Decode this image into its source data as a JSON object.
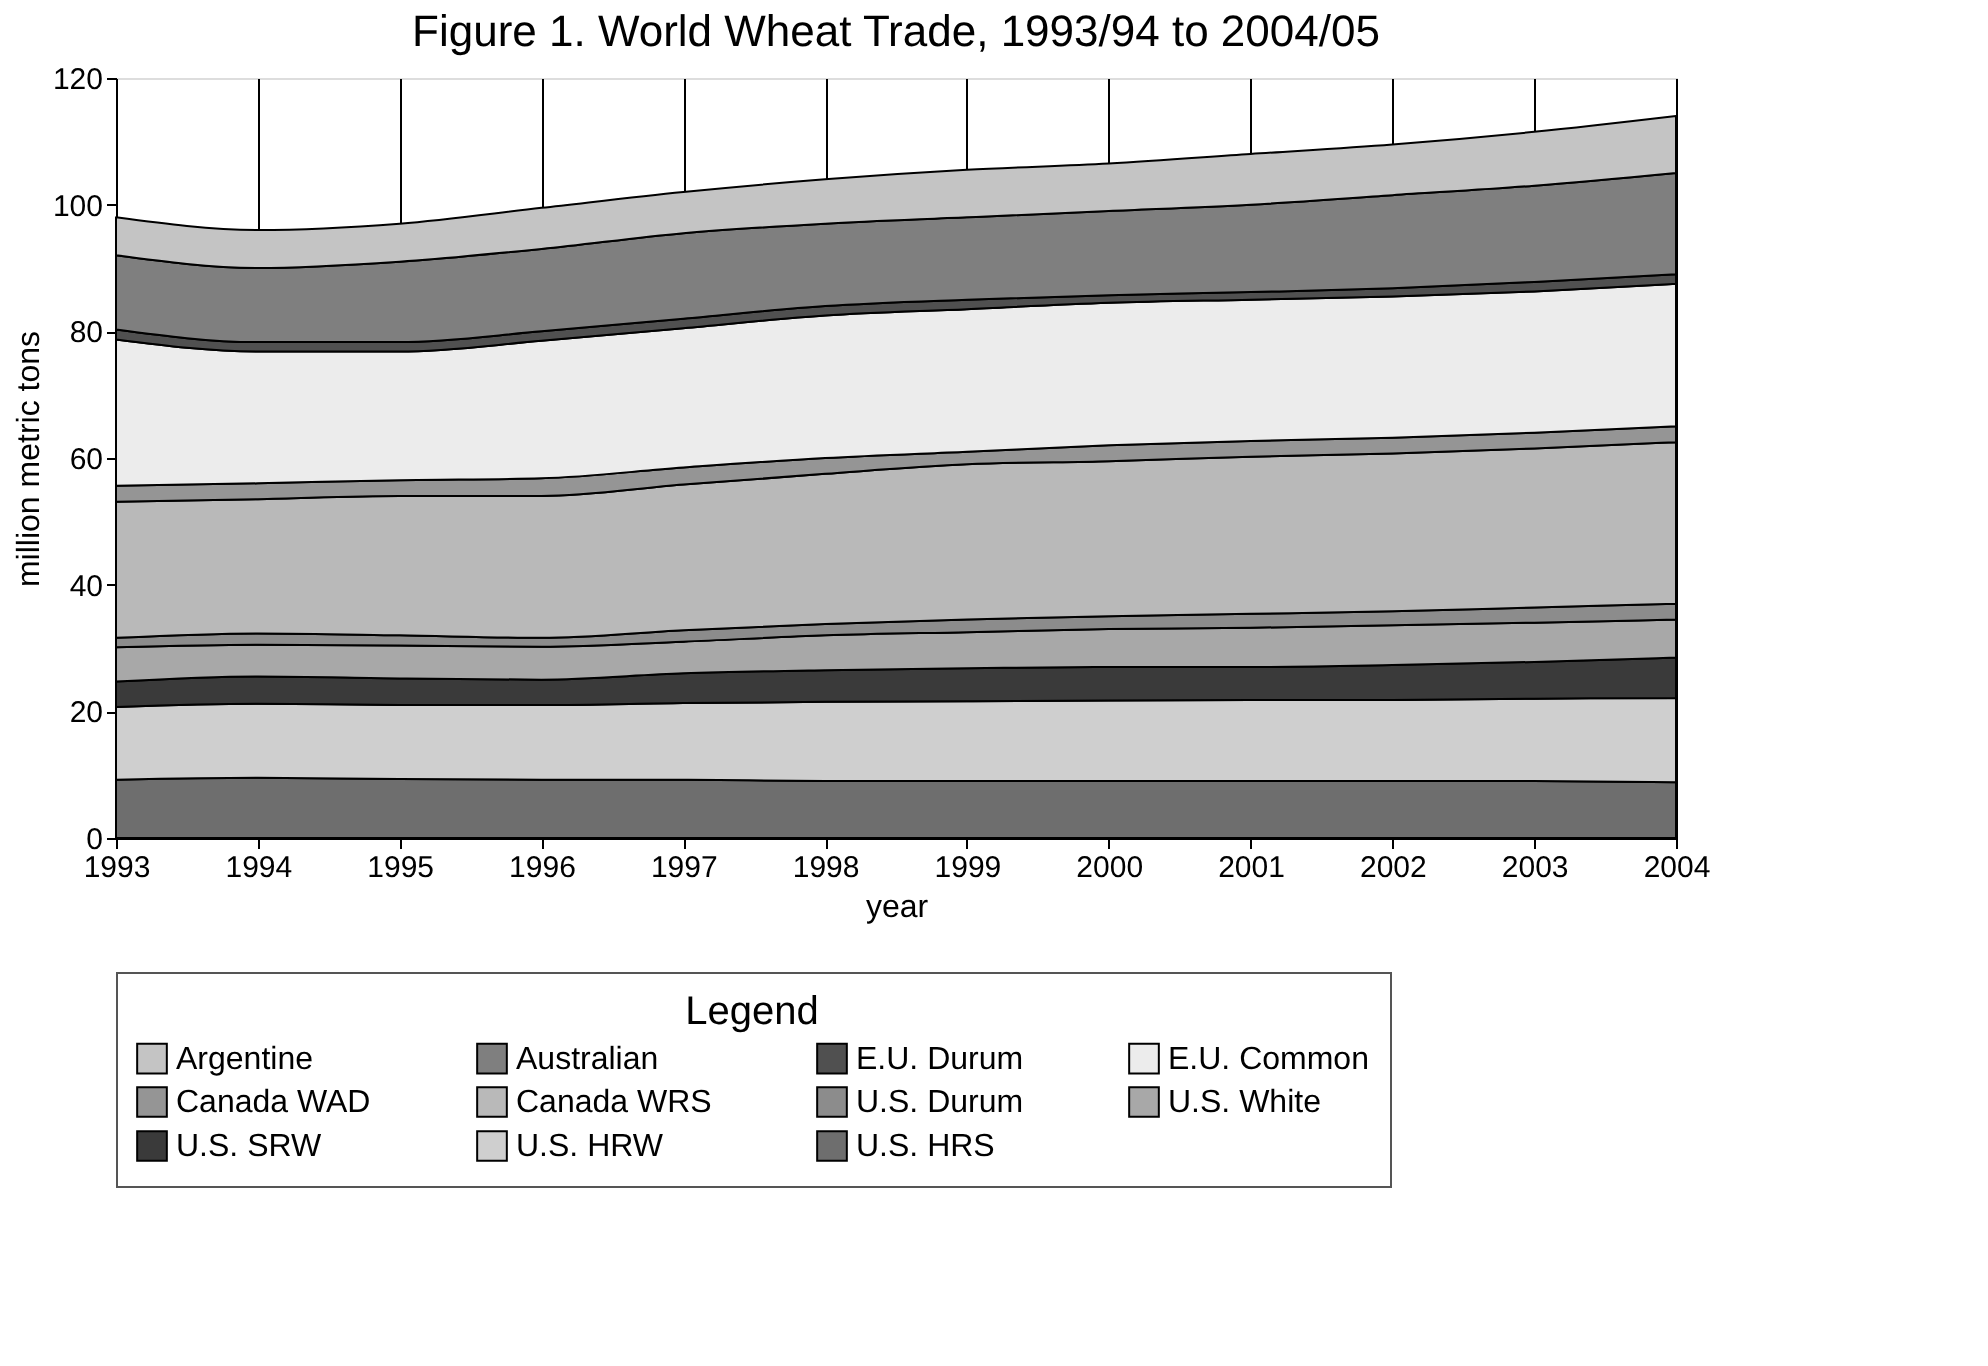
{
  "chart_data": {
    "type": "area",
    "title": "Figure 1. World Wheat Trade, 1993/94 to 2004/05",
    "xlabel": "year",
    "ylabel": "million metric tons",
    "legend_title": "Legend",
    "stacked": true,
    "legend": "bottom",
    "grid": "x",
    "x": [
      1993,
      1994,
      1995,
      1996,
      1997,
      1998,
      1999,
      2000,
      2001,
      2002,
      2003,
      2004
    ],
    "xlim": [
      1993,
      2004
    ],
    "xticks": [
      1993,
      1994,
      1995,
      1996,
      1997,
      1998,
      1999,
      2000,
      2001,
      2002,
      2003,
      2004
    ],
    "ylim": [
      0,
      120
    ],
    "yticks": [
      0,
      20,
      40,
      60,
      80,
      100,
      120
    ],
    "series": [
      {
        "name": "U.S. HRS",
        "color": "#6e6e6e",
        "values": [
          9.2,
          9.5,
          9.3,
          9.2,
          9.2,
          9.0,
          9.0,
          9.0,
          9.0,
          9.0,
          9.0,
          8.8
        ]
      },
      {
        "name": "U.S. HRW",
        "color": "#cfcfcf",
        "values": [
          11.5,
          11.7,
          11.7,
          11.8,
          12.1,
          12.5,
          12.6,
          12.7,
          12.8,
          12.8,
          13.0,
          13.3
        ]
      },
      {
        "name": "U.S. SRW",
        "color": "#3a3a3a",
        "values": [
          4.0,
          4.3,
          4.2,
          4.0,
          4.7,
          5.0,
          5.2,
          5.3,
          5.2,
          5.5,
          5.8,
          6.4
        ]
      },
      {
        "name": "U.S. White",
        "color": "#a8a8a8",
        "values": [
          5.4,
          5.0,
          5.2,
          5.2,
          5.0,
          5.5,
          5.7,
          6.0,
          6.2,
          6.3,
          6.2,
          6.0
        ]
      },
      {
        "name": "U.S. Durum",
        "color": "#8c8c8c",
        "values": [
          1.5,
          1.8,
          1.6,
          1.4,
          1.8,
          1.8,
          2.0,
          2.0,
          2.2,
          2.2,
          2.4,
          2.5
        ]
      },
      {
        "name": "Canada WRS",
        "color": "#b9b9b9",
        "values": [
          21.5,
          21.2,
          22.0,
          22.4,
          23.0,
          23.7,
          24.5,
          24.5,
          24.8,
          24.9,
          25.1,
          25.5
        ]
      },
      {
        "name": "Canada WAD",
        "color": "#959595",
        "values": [
          2.5,
          2.5,
          2.5,
          2.8,
          2.7,
          2.5,
          2.0,
          2.5,
          2.5,
          2.5,
          2.5,
          2.5
        ]
      },
      {
        "name": "E.U. Common",
        "color": "#ececec",
        "values": [
          23.1,
          20.8,
          20.3,
          21.7,
          22.0,
          22.5,
          22.5,
          22.5,
          22.3,
          22.3,
          22.3,
          22.5
        ]
      },
      {
        "name": "E.U. Durum",
        "color": "#505050",
        "values": [
          1.6,
          1.5,
          1.5,
          1.5,
          1.5,
          1.5,
          1.5,
          1.2,
          1.2,
          1.3,
          1.5,
          1.5
        ]
      },
      {
        "name": "Australian",
        "color": "#7f7f7f",
        "values": [
          11.7,
          11.7,
          12.7,
          13.0,
          13.5,
          13.0,
          13.0,
          13.3,
          13.8,
          14.7,
          15.2,
          16.0
        ]
      },
      {
        "name": "Argentine",
        "color": "#c4c4c4",
        "values": [
          6.0,
          6.0,
          6.0,
          6.5,
          6.5,
          7.0,
          7.5,
          7.5,
          8.0,
          8.0,
          8.5,
          9.0
        ]
      }
    ]
  }
}
